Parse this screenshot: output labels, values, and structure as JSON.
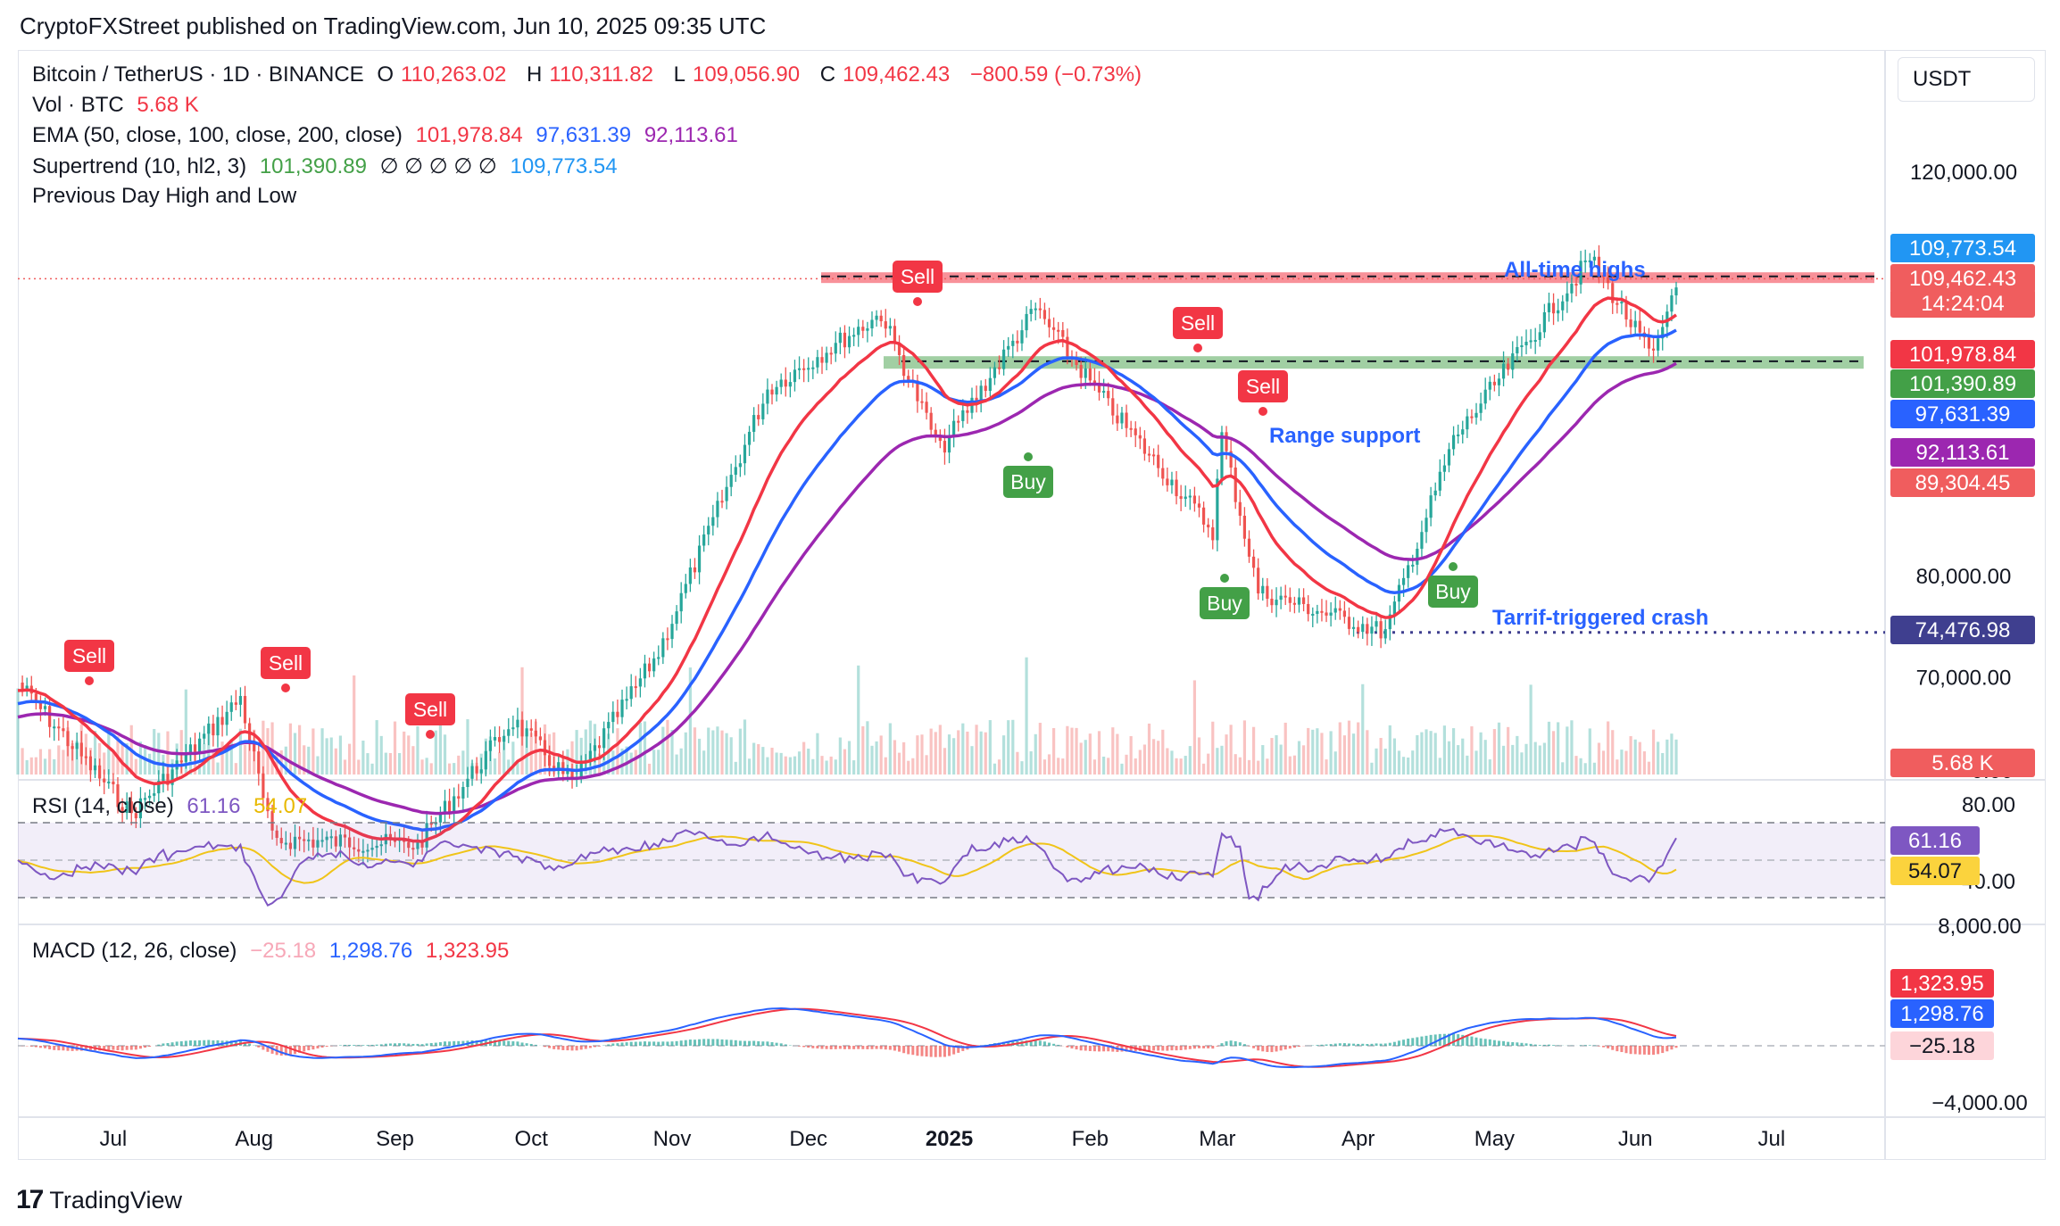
{
  "header": {
    "published_line": "CryptoFXStreet published on TradingView.com, Jun 10, 2025 09:35 UTC"
  },
  "legend": {
    "symbol": "Bitcoin / TetherUS · 1D · BINANCE",
    "o_label": "O",
    "o_value": "110,263.02",
    "h_label": "H",
    "h_value": "110,311.82",
    "l_label": "L",
    "l_value": "109,056.90",
    "c_label": "C",
    "c_value": "109,462.43",
    "change": "−800.59 (−0.73%)",
    "vol_label": "Vol · BTC",
    "vol_value": "5.68 K",
    "ema_label": "EMA (50, close, 100, close, 200, close)",
    "ema50": "101,978.84",
    "ema100": "97,631.39",
    "ema200": "92,113.61",
    "supertrend_label": "Supertrend (10, hl2, 3)",
    "supertrend_up": "101,390.89",
    "supertrend_empty": "∅ ∅ ∅ ∅ ∅",
    "supertrend_down": "109,773.54",
    "pdhl_label": "Previous Day High and Low",
    "rsi_label": "RSI (14, close)",
    "rsi_value": "61.16",
    "rsi_ma": "54.07",
    "macd_label": "MACD (12, 26, close)",
    "macd_hist": "−25.18",
    "macd_line": "1,298.76",
    "macd_signal": "1,323.95"
  },
  "currency": "USDT",
  "price_axis": {
    "ticks": [
      "120,000.00",
      "80,000.00",
      "70,000.00"
    ],
    "volume_tick": "0.00",
    "rsi_ticks": [
      "80.00",
      "40.00"
    ],
    "macd_ticks": [
      "8,000.00",
      "−4,000.00"
    ]
  },
  "price_badges": [
    {
      "text": "109,773.54",
      "color": "#2196f3"
    },
    {
      "text": "109,462.43",
      "color": "#f05d5e"
    },
    {
      "text": "14:24:04",
      "color": "#f05d5e"
    },
    {
      "text": "101,978.84",
      "color": "#f23645"
    },
    {
      "text": "101,390.89",
      "color": "#43a047"
    },
    {
      "text": "97,631.39",
      "color": "#2962ff"
    },
    {
      "text": "92,113.61",
      "color": "#9c27b0"
    },
    {
      "text": "89,304.45",
      "color": "#f05d5e"
    },
    {
      "text": "74,476.98",
      "color": "#3f3f8f"
    },
    {
      "text": "5.68 K",
      "color": "#f05d5e"
    }
  ],
  "rsi_badges": [
    {
      "text": "61.16",
      "color": "#7e57c2"
    },
    {
      "text": "54.07",
      "color": "#fbd33d"
    }
  ],
  "macd_badges": [
    {
      "text": "1,323.95",
      "color": "#f23645"
    },
    {
      "text": "1,298.76",
      "color": "#2962ff"
    },
    {
      "text": "−25.18",
      "color": "#fdd5da"
    }
  ],
  "time_axis": [
    "Jul",
    "Aug",
    "Sep",
    "Oct",
    "Nov",
    "Dec",
    "2025",
    "Feb",
    "Mar",
    "Apr",
    "May",
    "Jun",
    "Jul"
  ],
  "annotations": {
    "ath": "All-time highs",
    "range_support": "Range support",
    "tariff_crash": "Tarrif-triggered crash"
  },
  "signals": [
    {
      "label": "Sell",
      "type": "sell"
    },
    {
      "label": "Sell",
      "type": "sell"
    },
    {
      "label": "Sell",
      "type": "sell"
    },
    {
      "label": "Sell",
      "type": "sell"
    },
    {
      "label": "Sell",
      "type": "sell"
    },
    {
      "label": "Sell",
      "type": "sell"
    },
    {
      "label": "Buy",
      "type": "buy"
    },
    {
      "label": "Buy",
      "type": "buy"
    },
    {
      "label": "Buy",
      "type": "buy"
    }
  ],
  "brand": "TradingView",
  "colors": {
    "up": "#26a69a",
    "down": "#ef5350",
    "ema50": "#f23645",
    "ema100": "#2962ff",
    "ema200": "#9c27b0",
    "st_up": "#43a047",
    "st_down": "#f23645",
    "rsi": "#7e57c2",
    "rsi_ma": "#f0c419"
  },
  "chart_data": {
    "type": "candlestick",
    "title": "Bitcoin / TetherUS · 1D · BINANCE",
    "x_range": [
      "2024-06-10",
      "2025-06-10"
    ],
    "ohlc_last": {
      "open": 110263.02,
      "high": 110311.82,
      "low": 109056.9,
      "close": 109462.43
    },
    "price_path": [
      {
        "date": "2024-06-10",
        "close": 69500
      },
      {
        "date": "2024-07-05",
        "close": 56500
      },
      {
        "date": "2024-07-29",
        "close": 68000
      },
      {
        "date": "2024-08-05",
        "close": 54000
      },
      {
        "date": "2024-09-06",
        "close": 53500
      },
      {
        "date": "2024-09-27",
        "close": 65800
      },
      {
        "date": "2024-10-10",
        "close": 59500
      },
      {
        "date": "2024-10-29",
        "close": 72500
      },
      {
        "date": "2024-11-22",
        "close": 98500
      },
      {
        "date": "2024-12-17",
        "close": 106000
      },
      {
        "date": "2024-12-30",
        "close": 92500
      },
      {
        "date": "2025-01-20",
        "close": 106500
      },
      {
        "date": "2025-02-03",
        "close": 98000
      },
      {
        "date": "2025-02-28",
        "close": 84500
      },
      {
        "date": "2025-03-02",
        "close": 94000
      },
      {
        "date": "2025-03-10",
        "close": 78500
      },
      {
        "date": "2025-04-07",
        "close": 74500
      },
      {
        "date": "2025-04-22",
        "close": 93500
      },
      {
        "date": "2025-05-22",
        "close": 111500
      },
      {
        "date": "2025-06-05",
        "close": 101500
      },
      {
        "date": "2025-06-10",
        "close": 109462.43
      }
    ],
    "ema50_last": 101978.84,
    "ema100_last": 97631.39,
    "ema200_last": 92113.61,
    "supertrend_up_last": 101390.89,
    "resistance": 109773.54,
    "range_support": 101390.89,
    "tariff_low": 74476.98,
    "rsi_last": 61.16,
    "rsi_ma_last": 54.07,
    "rsi_band": [
      30,
      70
    ],
    "macd_last": {
      "macd": 1298.76,
      "signal": 1323.95,
      "hist": -25.18
    },
    "volume_last": "5.68 K"
  }
}
